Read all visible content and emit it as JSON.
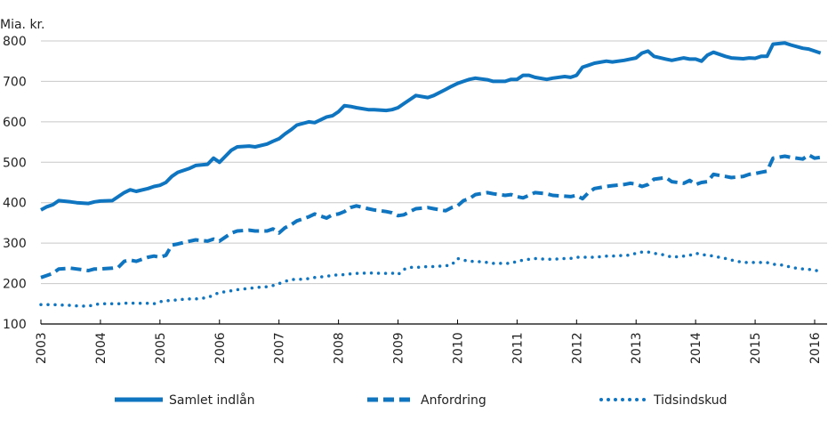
{
  "chart_data": {
    "type": "line",
    "title": "",
    "ylabel": "Mia. kr.",
    "xlabel": "",
    "ylim": [
      100,
      800
    ],
    "xlim": [
      2003,
      2016.2
    ],
    "yticks": [
      "100",
      "200",
      "300",
      "400",
      "500",
      "600",
      "700",
      "800"
    ],
    "xticks": [
      "2003",
      "2004",
      "2005",
      "2006",
      "2007",
      "2008",
      "2009",
      "2010",
      "2011",
      "2012",
      "2013",
      "2014",
      "2015",
      "2016"
    ],
    "grid": true,
    "legend_position": "bottom",
    "color": "#0f75c1",
    "series": [
      {
        "name": "Samlet indlån",
        "style": "solid",
        "x": [
          2003.0,
          2003.1,
          2003.2,
          2003.3,
          2003.5,
          2003.6,
          2003.8,
          2003.9,
          2004.0,
          2004.2,
          2004.3,
          2004.4,
          2004.5,
          2004.6,
          2004.8,
          2004.9,
          2005.0,
          2005.1,
          2005.2,
          2005.3,
          2005.5,
          2005.6,
          2005.8,
          2005.9,
          2006.0,
          2006.1,
          2006.2,
          2006.3,
          2006.5,
          2006.6,
          2006.8,
          2006.9,
          2007.0,
          2007.1,
          2007.2,
          2007.3,
          2007.5,
          2007.6,
          2007.8,
          2007.9,
          2008.0,
          2008.1,
          2008.2,
          2008.3,
          2008.5,
          2008.6,
          2008.8,
          2008.9,
          2009.0,
          2009.1,
          2009.2,
          2009.3,
          2009.5,
          2009.6,
          2009.8,
          2009.9,
          2010.0,
          2010.1,
          2010.2,
          2010.3,
          2010.5,
          2010.6,
          2010.8,
          2010.9,
          2011.0,
          2011.1,
          2011.2,
          2011.3,
          2011.5,
          2011.6,
          2011.8,
          2011.9,
          2012.0,
          2012.1,
          2012.2,
          2012.3,
          2012.5,
          2012.6,
          2012.8,
          2012.9,
          2013.0,
          2013.1,
          2013.2,
          2013.3,
          2013.5,
          2013.6,
          2013.8,
          2013.9,
          2014.0,
          2014.1,
          2014.2,
          2014.3,
          2014.5,
          2014.6,
          2014.8,
          2014.9,
          2015.0,
          2015.1,
          2015.2,
          2015.3,
          2015.5,
          2015.6,
          2015.8,
          2015.9,
          2016.0,
          2016.1
        ],
        "values": [
          382,
          390,
          395,
          405,
          402,
          400,
          398,
          402,
          404,
          405,
          415,
          425,
          432,
          428,
          435,
          440,
          443,
          450,
          465,
          475,
          485,
          492,
          495,
          510,
          500,
          515,
          530,
          538,
          540,
          538,
          545,
          552,
          558,
          570,
          580,
          592,
          600,
          598,
          612,
          615,
          625,
          640,
          638,
          635,
          630,
          630,
          628,
          630,
          635,
          645,
          655,
          665,
          660,
          665,
          680,
          688,
          695,
          700,
          705,
          708,
          704,
          700,
          700,
          705,
          705,
          715,
          715,
          710,
          705,
          708,
          712,
          710,
          715,
          735,
          740,
          745,
          750,
          748,
          752,
          755,
          758,
          770,
          775,
          762,
          755,
          752,
          758,
          755,
          755,
          750,
          765,
          772,
          762,
          758,
          756,
          758,
          757,
          762,
          762,
          792,
          795,
          790,
          782,
          780,
          775,
          770
        ]
      },
      {
        "name": "Anfordring",
        "style": "dashed",
        "x": [
          2003.0,
          2003.1,
          2003.2,
          2003.3,
          2003.5,
          2003.6,
          2003.8,
          2003.9,
          2004.0,
          2004.2,
          2004.3,
          2004.4,
          2004.5,
          2004.6,
          2004.8,
          2004.9,
          2005.0,
          2005.1,
          2005.2,
          2005.3,
          2005.5,
          2005.6,
          2005.8,
          2005.9,
          2006.0,
          2006.1,
          2006.2,
          2006.3,
          2006.5,
          2006.6,
          2006.8,
          2006.9,
          2007.0,
          2007.1,
          2007.2,
          2007.3,
          2007.5,
          2007.6,
          2007.8,
          2007.9,
          2008.0,
          2008.1,
          2008.2,
          2008.3,
          2008.5,
          2008.6,
          2008.8,
          2008.9,
          2009.0,
          2009.1,
          2009.2,
          2009.3,
          2009.5,
          2009.6,
          2009.8,
          2009.9,
          2010.0,
          2010.1,
          2010.2,
          2010.3,
          2010.5,
          2010.6,
          2010.8,
          2010.9,
          2011.0,
          2011.1,
          2011.2,
          2011.3,
          2011.5,
          2011.6,
          2011.8,
          2011.9,
          2012.0,
          2012.1,
          2012.2,
          2012.3,
          2012.5,
          2012.6,
          2012.8,
          2012.9,
          2013.0,
          2013.1,
          2013.2,
          2013.3,
          2013.5,
          2013.6,
          2013.8,
          2013.9,
          2014.0,
          2014.1,
          2014.2,
          2014.3,
          2014.5,
          2014.6,
          2014.8,
          2014.9,
          2015.0,
          2015.1,
          2015.2,
          2015.3,
          2015.5,
          2015.6,
          2015.8,
          2015.9,
          2016.0,
          2016.1
        ],
        "values": [
          215,
          220,
          225,
          236,
          238,
          236,
          232,
          236,
          236,
          238,
          240,
          255,
          258,
          255,
          265,
          268,
          265,
          270,
          295,
          298,
          305,
          308,
          305,
          310,
          305,
          315,
          325,
          330,
          332,
          330,
          330,
          335,
          325,
          338,
          345,
          355,
          365,
          372,
          362,
          370,
          372,
          378,
          388,
          392,
          385,
          382,
          378,
          375,
          368,
          370,
          378,
          385,
          388,
          385,
          380,
          388,
          392,
          405,
          410,
          420,
          425,
          422,
          418,
          420,
          415,
          412,
          418,
          425,
          422,
          418,
          416,
          415,
          418,
          410,
          425,
          435,
          440,
          442,
          445,
          448,
          446,
          440,
          445,
          458,
          462,
          452,
          448,
          455,
          445,
          450,
          452,
          470,
          465,
          462,
          465,
          470,
          472,
          475,
          478,
          510,
          515,
          512,
          508,
          518,
          510,
          512
        ]
      },
      {
        "name": "Tidsindskud",
        "style": "dotted",
        "x": [
          2003.0,
          2003.1,
          2003.2,
          2003.3,
          2003.5,
          2003.6,
          2003.8,
          2003.9,
          2004.0,
          2004.2,
          2004.3,
          2004.4,
          2004.5,
          2004.6,
          2004.8,
          2004.9,
          2005.0,
          2005.1,
          2005.2,
          2005.3,
          2005.5,
          2005.6,
          2005.8,
          2005.9,
          2006.0,
          2006.1,
          2006.2,
          2006.3,
          2006.5,
          2006.6,
          2006.8,
          2006.9,
          2007.0,
          2007.1,
          2007.2,
          2007.3,
          2007.5,
          2007.6,
          2007.8,
          2007.9,
          2008.0,
          2008.1,
          2008.2,
          2008.3,
          2008.5,
          2008.6,
          2008.8,
          2008.9,
          2009.0,
          2009.1,
          2009.2,
          2009.3,
          2009.5,
          2009.6,
          2009.8,
          2009.9,
          2010.0,
          2010.1,
          2010.2,
          2010.3,
          2010.5,
          2010.6,
          2010.8,
          2010.9,
          2011.0,
          2011.1,
          2011.2,
          2011.3,
          2011.5,
          2011.6,
          2011.8,
          2011.9,
          2012.0,
          2012.1,
          2012.2,
          2012.3,
          2012.5,
          2012.6,
          2012.8,
          2012.9,
          2013.0,
          2013.1,
          2013.2,
          2013.3,
          2013.5,
          2013.6,
          2013.8,
          2013.9,
          2014.0,
          2014.1,
          2014.2,
          2014.3,
          2014.5,
          2014.6,
          2014.8,
          2014.9,
          2015.0,
          2015.1,
          2015.2,
          2015.3,
          2015.5,
          2015.6,
          2015.8,
          2015.9,
          2016.0,
          2016.1
        ],
        "values": [
          148,
          148,
          148,
          147,
          146,
          145,
          144,
          148,
          150,
          150,
          150,
          151,
          152,
          151,
          151,
          150,
          155,
          158,
          158,
          160,
          162,
          162,
          165,
          172,
          178,
          180,
          182,
          185,
          188,
          190,
          192,
          195,
          200,
          205,
          210,
          210,
          212,
          215,
          218,
          220,
          222,
          222,
          224,
          225,
          226,
          226,
          225,
          226,
          222,
          235,
          240,
          240,
          242,
          242,
          244,
          246,
          262,
          258,
          255,
          255,
          252,
          250,
          250,
          250,
          255,
          258,
          260,
          262,
          260,
          260,
          262,
          262,
          265,
          265,
          265,
          265,
          268,
          268,
          270,
          270,
          275,
          278,
          278,
          275,
          270,
          265,
          268,
          270,
          275,
          272,
          270,
          268,
          262,
          258,
          252,
          252,
          252,
          252,
          252,
          248,
          245,
          240,
          236,
          235,
          234,
          228
        ]
      }
    ]
  },
  "legend": [
    {
      "label": "Samlet indlån",
      "style": "solid"
    },
    {
      "label": "Anfordring",
      "style": "dashed"
    },
    {
      "label": "Tidsindskud",
      "style": "dotted"
    }
  ]
}
